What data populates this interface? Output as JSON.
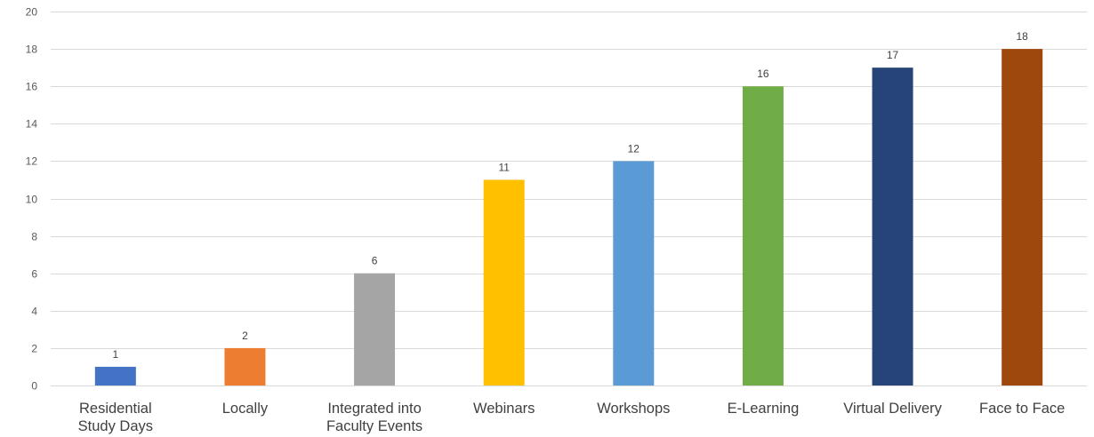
{
  "chart_data": {
    "type": "bar",
    "title": "",
    "xlabel": "",
    "ylabel": "",
    "ylim": [
      0,
      20
    ],
    "yticks": [
      0,
      2,
      4,
      6,
      8,
      10,
      12,
      14,
      16,
      18,
      20
    ],
    "grid": true,
    "legend": "none",
    "categories": [
      [
        "Residential",
        "Study Days"
      ],
      [
        "Locally"
      ],
      [
        "Integrated into",
        "Faculty Events"
      ],
      [
        "Webinars"
      ],
      [
        "Workshops"
      ],
      [
        "E-Learning"
      ],
      [
        "Virtual Delivery"
      ],
      [
        "Face to Face"
      ]
    ],
    "values": [
      1,
      2,
      6,
      11,
      12,
      16,
      17,
      18
    ],
    "colors": [
      "#4472c4",
      "#ed7d31",
      "#a5a5a5",
      "#ffc000",
      "#5b9bd5",
      "#70ad47",
      "#264478",
      "#9e480e"
    ]
  }
}
